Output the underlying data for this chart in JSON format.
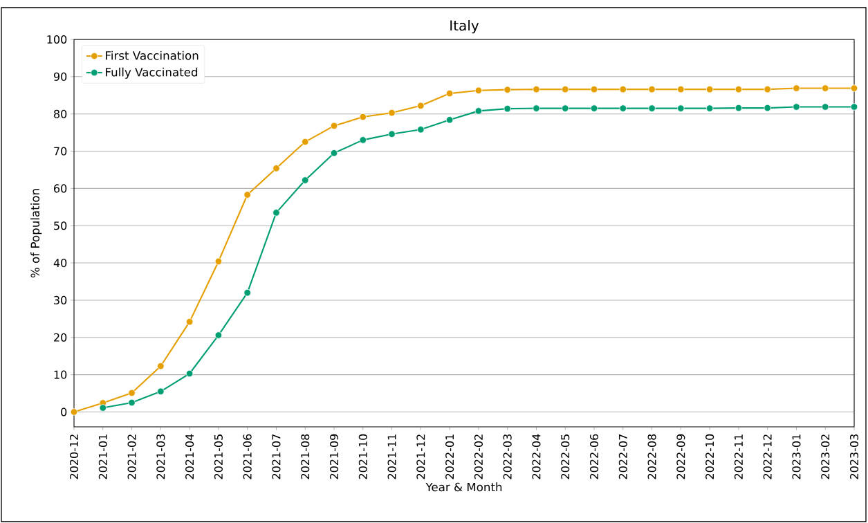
{
  "chart_data": {
    "type": "line",
    "title": "Italy",
    "xlabel": "Year & Month",
    "ylabel": "% of Population",
    "categories": [
      "2020-12",
      "2021-01",
      "2021-02",
      "2021-03",
      "2021-04",
      "2021-05",
      "2021-06",
      "2021-07",
      "2021-08",
      "2021-09",
      "2021-10",
      "2021-11",
      "2021-12",
      "2022-01",
      "2022-02",
      "2022-03",
      "2022-04",
      "2022-05",
      "2022-06",
      "2022-07",
      "2022-08",
      "2022-09",
      "2022-10",
      "2022-11",
      "2022-12",
      "2023-01",
      "2023-02",
      "2023-03"
    ],
    "series": [
      {
        "name": "First Vaccination",
        "color": "#e69f00",
        "values": [
          0,
          2.4,
          5.1,
          12.3,
          24.2,
          40.4,
          58.3,
          65.4,
          72.5,
          76.8,
          79.2,
          80.3,
          82.2,
          85.5,
          86.3,
          86.5,
          86.6,
          86.6,
          86.6,
          86.6,
          86.6,
          86.6,
          86.6,
          86.6,
          86.6,
          86.9,
          86.9,
          86.9
        ]
      },
      {
        "name": "Fully Vaccinated",
        "color": "#009e73",
        "values": [
          null,
          1.1,
          2.5,
          5.5,
          10.3,
          20.6,
          32.0,
          53.5,
          62.2,
          69.5,
          73.0,
          74.6,
          75.8,
          78.4,
          80.8,
          81.4,
          81.5,
          81.5,
          81.5,
          81.5,
          81.5,
          81.5,
          81.5,
          81.6,
          81.6,
          81.9,
          81.9,
          81.9
        ]
      }
    ],
    "ylim": [
      -4,
      100
    ],
    "yticks": [
      0,
      10,
      20,
      30,
      40,
      50,
      60,
      70,
      80,
      90,
      100
    ],
    "grid": "y",
    "legend": "top left",
    "marker": "circle",
    "line_style": "solid"
  }
}
